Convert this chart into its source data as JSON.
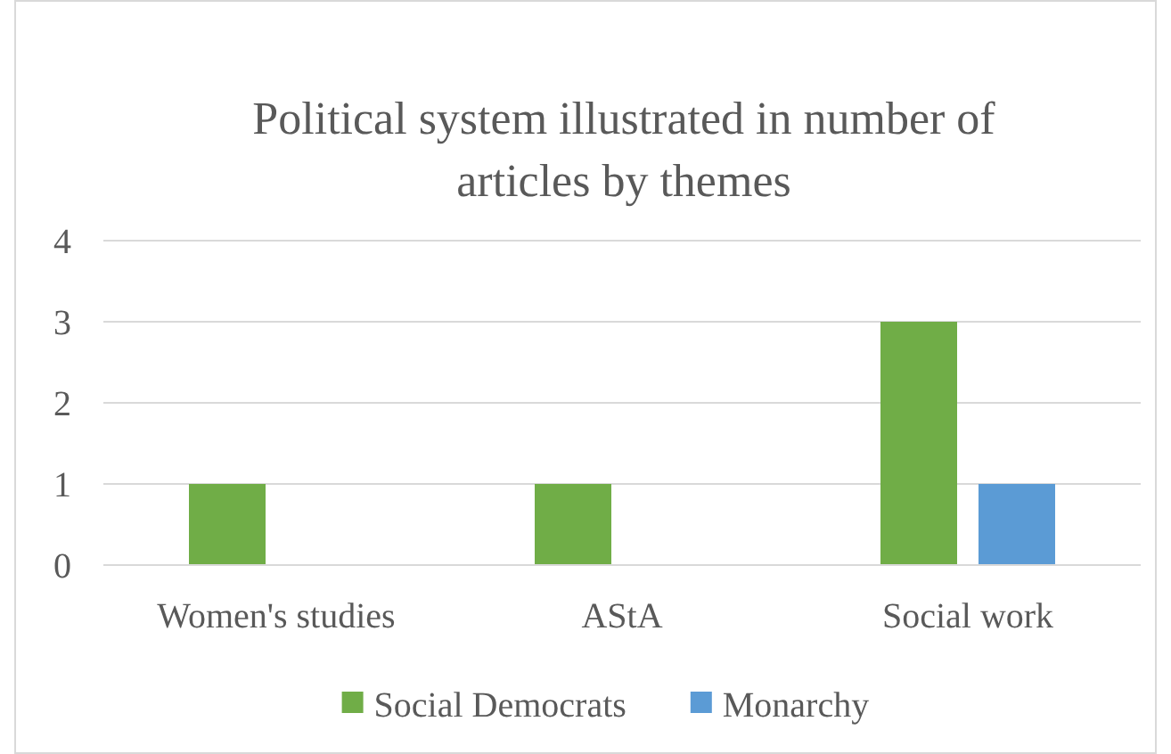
{
  "chart_data": {
    "type": "bar",
    "title": "Political system illustrated in number of articles by themes",
    "categories": [
      "Women's studies",
      "AStA",
      "Social work"
    ],
    "series": [
      {
        "name": "Social Democrats",
        "color": "#70ad47",
        "values": [
          1,
          1,
          3
        ]
      },
      {
        "name": "Monarchy",
        "color": "#5b9bd5",
        "values": [
          0,
          0,
          1
        ]
      }
    ],
    "ylim": [
      0,
      4
    ],
    "yticks": [
      0,
      1,
      2,
      3,
      4
    ],
    "grid": "y",
    "legend": "bottom"
  }
}
